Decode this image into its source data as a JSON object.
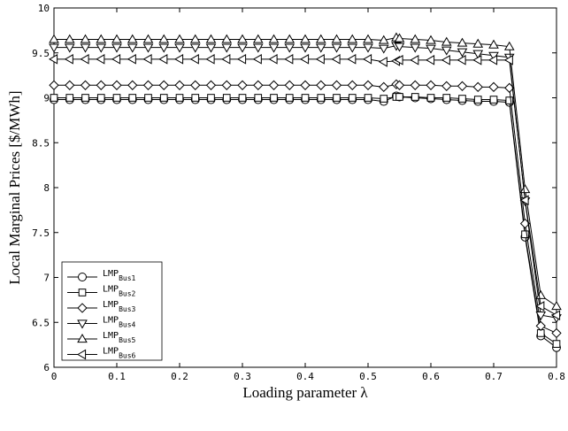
{
  "chart_data": {
    "type": "line",
    "title": "",
    "xlabel": "Loading parameter λ",
    "ylabel": "Local Marginal Prices [$/MWh]",
    "xlim": [
      0,
      0.8
    ],
    "ylim": [
      6,
      10
    ],
    "xticks": [
      "0",
      "0.1",
      "0.2",
      "0.3",
      "0.4",
      "0.5",
      "0.6",
      "0.7",
      "0.8"
    ],
    "yticks": [
      "6",
      "6.5",
      "7",
      "7.5",
      "8",
      "8.5",
      "9",
      "9.5",
      "10"
    ],
    "grid": false,
    "legend_position": "bottom-left",
    "x": [
      0,
      0.025,
      0.05,
      0.075,
      0.1,
      0.125,
      0.15,
      0.175,
      0.2,
      0.225,
      0.25,
      0.275,
      0.3,
      0.325,
      0.35,
      0.375,
      0.4,
      0.425,
      0.45,
      0.475,
      0.5,
      0.525,
      0.545,
      0.55,
      0.575,
      0.6,
      0.625,
      0.65,
      0.675,
      0.7,
      0.725,
      0.75,
      0.775,
      0.8
    ],
    "series": [
      {
        "name": "LMP",
        "sub": "Bus1",
        "marker": "circle",
        "values": [
          8.98,
          8.98,
          8.98,
          8.98,
          8.98,
          8.98,
          8.98,
          8.98,
          8.98,
          8.98,
          8.98,
          8.98,
          8.98,
          8.98,
          8.98,
          8.98,
          8.98,
          8.98,
          8.98,
          8.98,
          8.98,
          8.96,
          9.02,
          9.01,
          9.0,
          8.99,
          8.98,
          8.97,
          8.96,
          8.96,
          8.95,
          7.45,
          6.35,
          6.22
        ]
      },
      {
        "name": "LMP",
        "sub": "Bus2",
        "marker": "square",
        "values": [
          9.0,
          9.0,
          9.0,
          9.0,
          9.0,
          9.0,
          9.0,
          9.0,
          9.0,
          9.0,
          9.0,
          9.0,
          9.0,
          9.0,
          9.0,
          9.0,
          9.0,
          9.0,
          9.0,
          9.0,
          9.0,
          8.99,
          9.01,
          9.01,
          9.01,
          9.0,
          9.0,
          8.99,
          8.98,
          8.98,
          8.97,
          7.48,
          6.38,
          6.26
        ]
      },
      {
        "name": "LMP",
        "sub": "Bus3",
        "marker": "diamond",
        "values": [
          9.14,
          9.14,
          9.14,
          9.14,
          9.14,
          9.14,
          9.14,
          9.14,
          9.14,
          9.14,
          9.14,
          9.14,
          9.14,
          9.14,
          9.14,
          9.14,
          9.14,
          9.14,
          9.14,
          9.14,
          9.14,
          9.12,
          9.15,
          9.14,
          9.14,
          9.14,
          9.13,
          9.13,
          9.12,
          9.12,
          9.11,
          7.6,
          6.46,
          6.38
        ]
      },
      {
        "name": "LMP",
        "sub": "Bus4",
        "marker": "triangle-down",
        "values": [
          9.56,
          9.56,
          9.56,
          9.56,
          9.56,
          9.56,
          9.56,
          9.56,
          9.56,
          9.56,
          9.56,
          9.56,
          9.56,
          9.56,
          9.56,
          9.56,
          9.56,
          9.56,
          9.56,
          9.56,
          9.56,
          9.55,
          9.58,
          9.57,
          9.56,
          9.55,
          9.53,
          9.51,
          9.49,
          9.47,
          9.45,
          7.85,
          6.58,
          6.55
        ]
      },
      {
        "name": "LMP",
        "sub": "Bus5",
        "marker": "triangle-up",
        "values": [
          9.65,
          9.65,
          9.65,
          9.65,
          9.65,
          9.65,
          9.65,
          9.65,
          9.65,
          9.65,
          9.65,
          9.65,
          9.65,
          9.65,
          9.65,
          9.65,
          9.65,
          9.65,
          9.65,
          9.65,
          9.65,
          9.64,
          9.67,
          9.66,
          9.65,
          9.64,
          9.62,
          9.61,
          9.6,
          9.59,
          9.57,
          7.98,
          6.8,
          6.68
        ]
      },
      {
        "name": "LMP",
        "sub": "Bus6",
        "marker": "triangle-left",
        "values": [
          9.43,
          9.43,
          9.43,
          9.43,
          9.43,
          9.43,
          9.43,
          9.43,
          9.43,
          9.43,
          9.43,
          9.43,
          9.43,
          9.43,
          9.43,
          9.43,
          9.43,
          9.43,
          9.43,
          9.43,
          9.43,
          9.4,
          9.41,
          9.42,
          9.42,
          9.42,
          9.42,
          9.42,
          9.42,
          9.42,
          9.42,
          7.86,
          6.68,
          6.58
        ]
      }
    ]
  }
}
